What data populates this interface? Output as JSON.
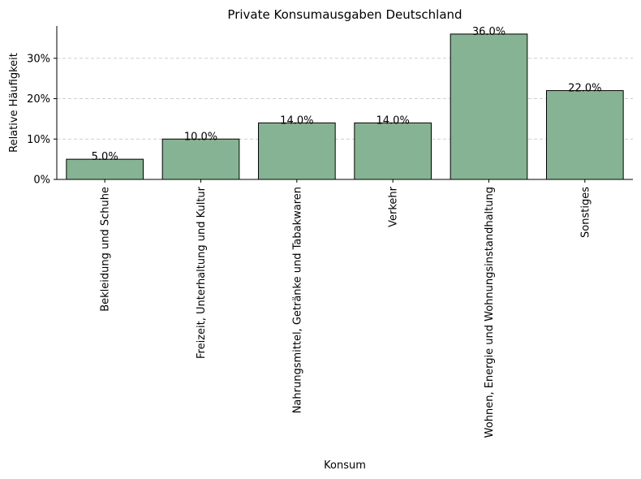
{
  "chart_data": {
    "type": "bar",
    "title": "Private Konsumausgaben Deutschland",
    "xlabel": "Konsum",
    "ylabel": "Relative Häufigkeit",
    "categories": [
      "Bekleidung und Schuhe",
      "Freizeit, Unterhaltung und Kultur",
      "Nahrungsmittel, Getränke und Tabakwaren",
      "Verkehr",
      "Wohnen, Energie und Wohnungsinstandhaltung",
      "Sonstiges"
    ],
    "values": [
      5.0,
      10.0,
      14.0,
      14.0,
      36.0,
      22.0
    ],
    "data_labels": [
      "5.0%",
      "10.0%",
      "14.0%",
      "14.0%",
      "36.0%",
      "22.0%"
    ],
    "ylim": [
      0,
      38
    ],
    "yticks": [
      0,
      10,
      20,
      30
    ],
    "ytick_labels": [
      "0%",
      "10%",
      "20%",
      "30%"
    ],
    "grid": "y-dashed",
    "bar_color": "#86b393",
    "bar_edge_color": "#000000"
  }
}
